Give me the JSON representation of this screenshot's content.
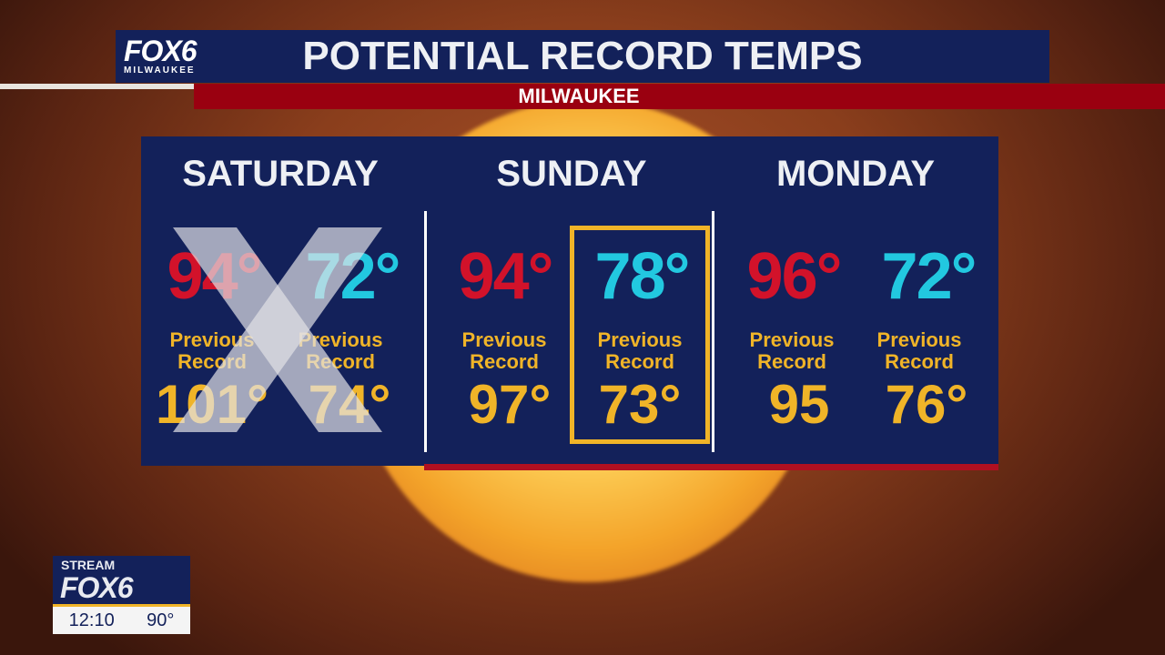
{
  "header": {
    "logo_main": "FOX6",
    "logo_sub": "MILWAUKEE",
    "title": "POTENTIAL RECORD TEMPS",
    "subtitle": "MILWAUKEE"
  },
  "days": [
    {
      "name": "SATURDAY",
      "high": "94°",
      "low": "72°",
      "prev_label": "Previous Record",
      "record_high": "101°",
      "record_low": "74°",
      "crossed_out": true
    },
    {
      "name": "SUNDAY",
      "high": "94°",
      "low": "78°",
      "prev_label": "Previous Record",
      "record_high": "97°",
      "record_low": "73°",
      "highlight": "low"
    },
    {
      "name": "MONDAY",
      "high": "96°",
      "low": "72°",
      "prev_label": "Previous Record",
      "record_high": "95",
      "record_low": "76°"
    }
  ],
  "colors": {
    "high": "#d2122a",
    "low": "#22c8e0",
    "record": "#f0b428",
    "panel": "#13215a",
    "accent_red": "#9a0010"
  },
  "bug": {
    "stream": "STREAM",
    "brand": "FOX6",
    "time": "12:10",
    "temp": "90°"
  }
}
